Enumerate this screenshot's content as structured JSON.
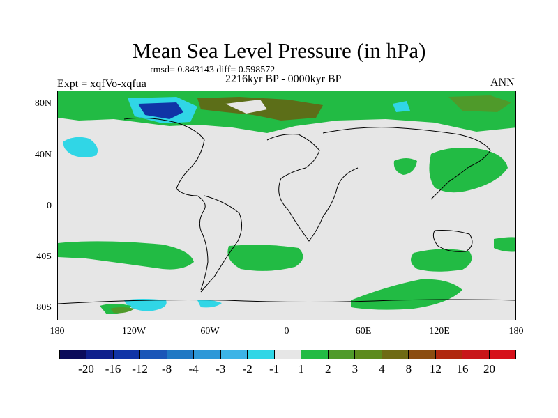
{
  "header": {
    "title": "Mean Sea Level Pressure (in hPa)",
    "stats": "rmsd= 0.843143  diff= 0.598572",
    "period": "2216kyr BP - 0000kyr BP",
    "experiment": "Expt = xqfVo-xqfua",
    "season": "ANN"
  },
  "axes": {
    "lat_labels": [
      "80N",
      "40N",
      "0",
      "40S",
      "80S"
    ],
    "lon_labels": [
      "180",
      "120W",
      "60W",
      "0",
      "60E",
      "120E",
      "180"
    ]
  },
  "colorbar": {
    "labels": [
      "-20",
      "-16",
      "-12",
      "-8",
      "-4",
      "-3",
      "-2",
      "-1",
      "1",
      "2",
      "3",
      "4",
      "8",
      "12",
      "16",
      "20"
    ],
    "colors": [
      "#0b0b5a",
      "#0f1f8c",
      "#1034a6",
      "#1a56b8",
      "#1f78c4",
      "#2e98d8",
      "#3cb4e6",
      "#30d6e6",
      "#e6e6e6",
      "#22bb44",
      "#4f9a2a",
      "#5c8a1c",
      "#6e6a14",
      "#8b4d10",
      "#b0280e",
      "#c8161a",
      "#d6101a"
    ]
  },
  "legend": {
    "map_background": "#e6e6e6",
    "positive_anomaly": "#22bb44",
    "strong_positive": "#5c6e18",
    "negative_anomaly": "#30d6e6",
    "strong_negative": "#1034a6"
  }
}
